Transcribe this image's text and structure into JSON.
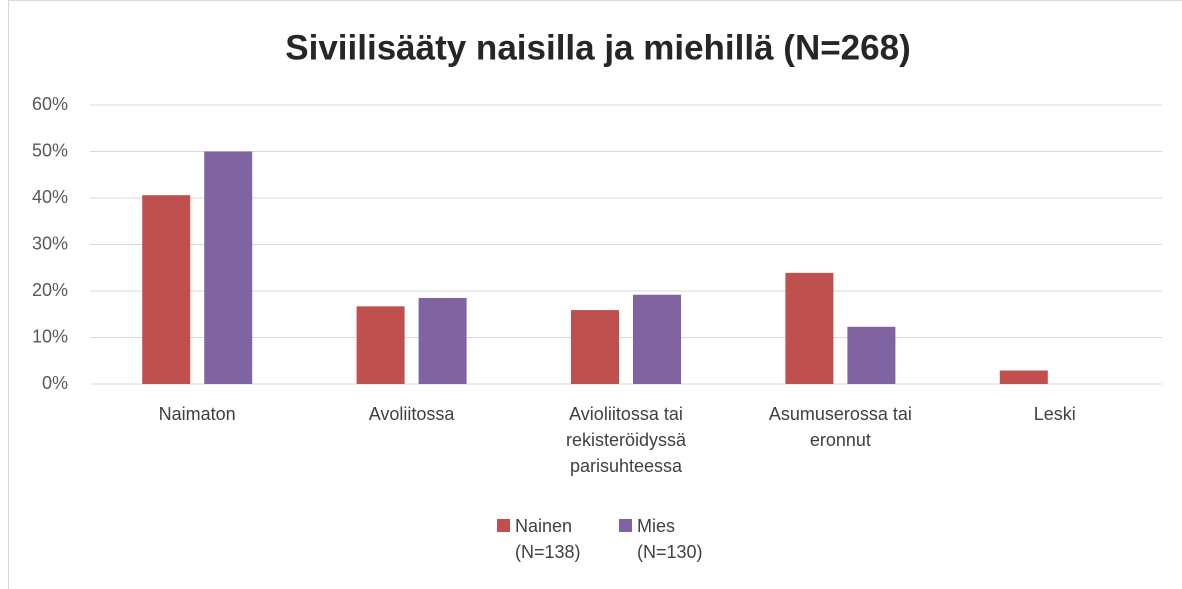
{
  "chart_data": {
    "type": "bar",
    "title": "Siviilisääty naisilla ja miehillä (N=268)",
    "categories": [
      "Naimaton",
      "Avoliitossa",
      "Avioliitossa tai rekisteröidyssä parisuhteessa",
      "Asumuserossa tai eronnut",
      "Leski"
    ],
    "series": [
      {
        "name": "Nainen (N=138)",
        "color": "#c0504d",
        "values": [
          40.6,
          16.7,
          15.9,
          23.9,
          2.9
        ]
      },
      {
        "name": "Mies (N=130)",
        "color": "#8064a2",
        "values": [
          50,
          18.5,
          19.2,
          12.3,
          0
        ]
      }
    ],
    "ylim": [
      0,
      60
    ],
    "yticks": [
      {
        "value": 0,
        "label": "0%"
      },
      {
        "value": 10,
        "label": "10%"
      },
      {
        "value": 20,
        "label": "20%"
      },
      {
        "value": 30,
        "label": "30%"
      },
      {
        "value": 40,
        "label": "40%"
      },
      {
        "value": 50,
        "label": "50%"
      },
      {
        "value": 60,
        "label": "60%"
      }
    ],
    "grid": true,
    "legend": "bottom"
  }
}
